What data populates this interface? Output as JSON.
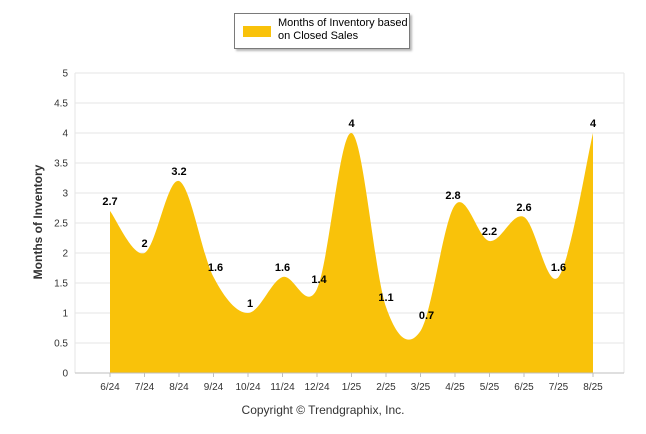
{
  "chart_data": {
    "type": "area",
    "categories": [
      "6/24",
      "7/24",
      "8/24",
      "9/24",
      "10/24",
      "11/24",
      "12/24",
      "1/25",
      "2/25",
      "3/25",
      "4/25",
      "5/25",
      "6/25",
      "7/25",
      "8/25"
    ],
    "series": [
      {
        "name": "Months of Inventory based on Closed Sales",
        "values": [
          2.7,
          2,
          3.2,
          1.6,
          1,
          1.6,
          1.4,
          4,
          1.1,
          0.7,
          2.8,
          2.2,
          2.6,
          1.6,
          4
        ]
      }
    ],
    "data_labels": [
      "2.7",
      "2",
      "3.2",
      "1.6",
      "1",
      "1.6",
      "1.4",
      "4",
      "1.1",
      "0.7",
      "2.8",
      "2.2",
      "2.6",
      "1.6",
      "4"
    ],
    "y_ticks": [
      "0",
      "0.5",
      "1",
      "1.5",
      "2",
      "2.5",
      "3",
      "3.5",
      "4",
      "4.5",
      "5"
    ],
    "ylabel": "Months of Inventory",
    "ylim": [
      0,
      5
    ],
    "grid": true,
    "legend_position": "top-center",
    "series_color": "#f9c20a",
    "grid_color": "#e6e6e6"
  },
  "footer": {
    "copyright": "Copyright © Trendgraphix, Inc."
  }
}
